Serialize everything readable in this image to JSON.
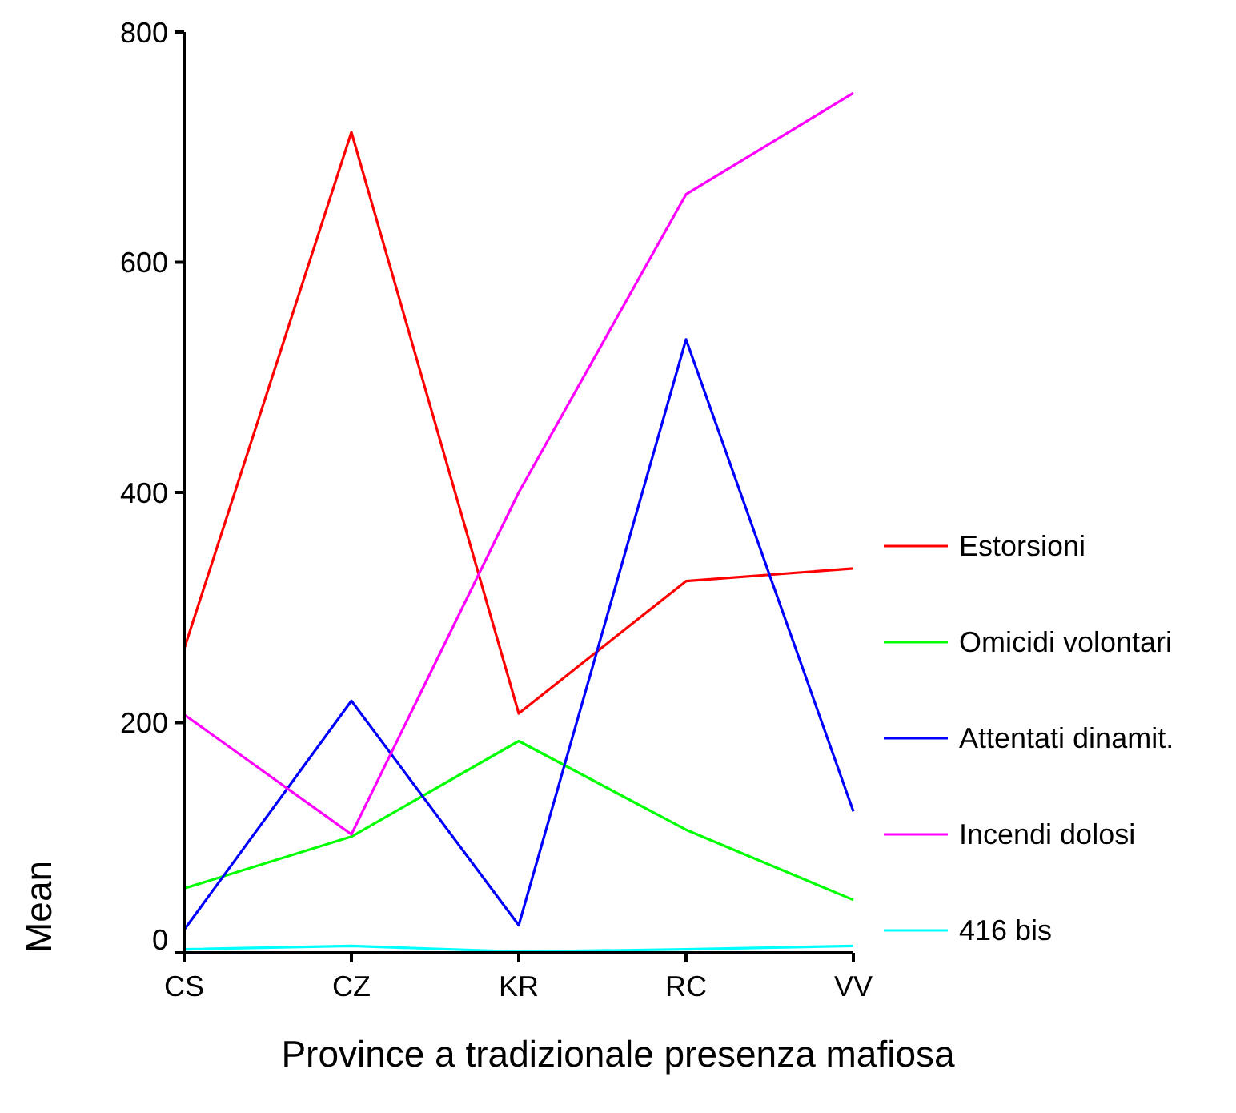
{
  "chart_data": {
    "type": "line",
    "xlabel": "Province a tradizionale presenza mafiosa",
    "ylabel": "Mean",
    "categories": [
      "CS",
      "CZ",
      "KR",
      "RC",
      "VV"
    ],
    "ylim": [
      0,
      800
    ],
    "yticks": [
      0,
      200,
      400,
      600,
      800
    ],
    "grid": false,
    "legend": "right",
    "marker": "none",
    "line_style": "solid",
    "series": [
      {
        "name": "Estorsioni",
        "color": "#ff0000",
        "values": [
          264,
          713,
          208,
          323,
          334
        ]
      },
      {
        "name": "Omicidi volontari",
        "color": "#00ff00",
        "values": [
          56,
          101,
          184,
          107,
          46
        ]
      },
      {
        "name": "Attentati dinamit.",
        "color": "#0000ff",
        "values": [
          20,
          219,
          24,
          533,
          123
        ]
      },
      {
        "name": "Incendi dolosi",
        "color": "#ff00ff",
        "values": [
          207,
          103,
          400,
          659,
          747
        ]
      },
      {
        "name": "416 bis",
        "color": "#00ffff",
        "values": [
          3,
          6,
          1,
          3,
          6
        ]
      }
    ]
  }
}
